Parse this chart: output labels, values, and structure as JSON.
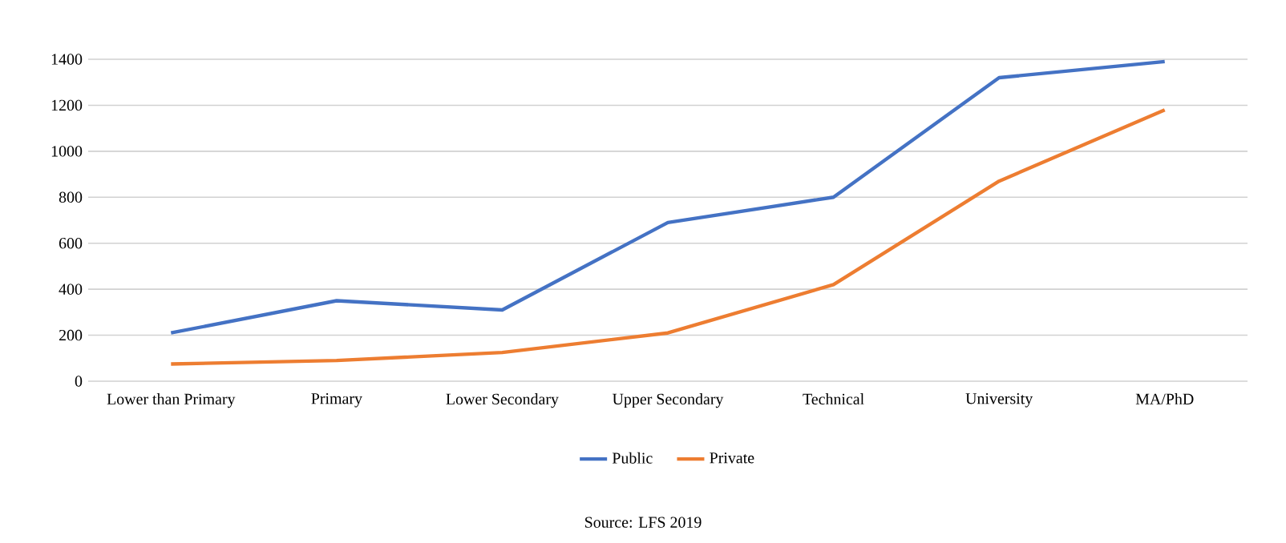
{
  "chart_data": {
    "type": "line",
    "categories": [
      "Lower than Primary",
      "Primary",
      "Lower Secondary",
      "Upper Secondary",
      "Technical",
      "University",
      "MA/PhD"
    ],
    "series": [
      {
        "name": "Public",
        "color": "#4472c4",
        "values": [
          210,
          350,
          310,
          690,
          800,
          1320,
          1390
        ]
      },
      {
        "name": "Private",
        "color": "#ed7d31",
        "values": [
          75,
          90,
          125,
          210,
          420,
          870,
          1180
        ]
      }
    ],
    "ylim": [
      0,
      1400
    ],
    "yticks": [
      0,
      200,
      400,
      600,
      800,
      1000,
      1200,
      1400
    ],
    "grid": "y",
    "legend": "bottom",
    "marker": "none",
    "line_style": "solid",
    "annotations": [
      "Source: LFS 2019"
    ]
  }
}
